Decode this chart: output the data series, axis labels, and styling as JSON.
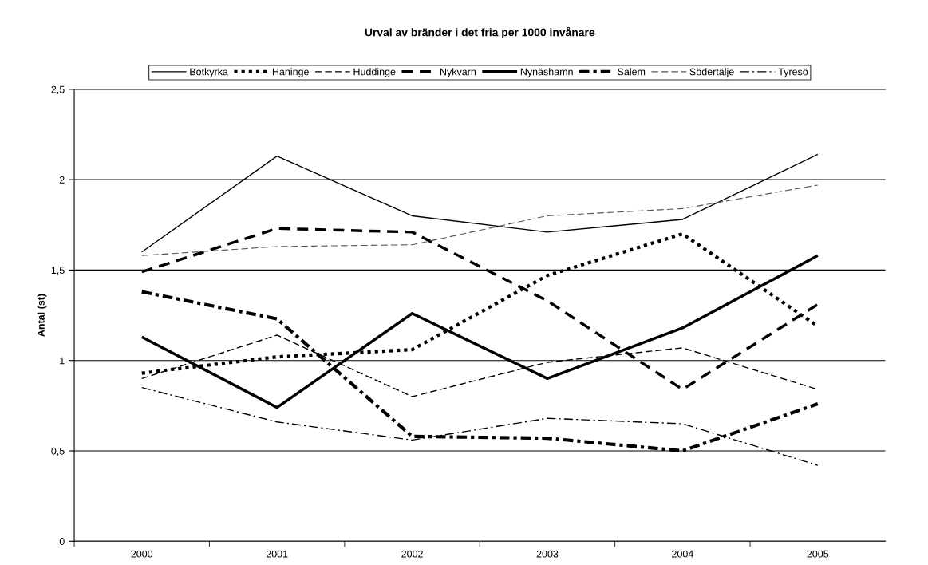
{
  "chart_data": {
    "type": "line",
    "title": "Urval av bränder i det fria per 1000 invånare",
    "ylabel": "Antal (st)",
    "categories": [
      "2000",
      "2001",
      "2002",
      "2003",
      "2004",
      "2005"
    ],
    "ylim": [
      0,
      2.5
    ],
    "yticks": [
      0,
      {
        "value": 0.5,
        "label": "0,5"
      },
      1,
      {
        "value": 1.5,
        "label": "1,5"
      },
      2,
      {
        "value": 2.5,
        "label": "2,5"
      }
    ],
    "grid": "y",
    "legend": "top",
    "marker": "none",
    "series": [
      {
        "name": "Botkyrka",
        "color": "#000000",
        "line_style": "solid",
        "values": [
          1.6,
          2.13,
          1.8,
          1.71,
          1.78,
          2.14
        ]
      },
      {
        "name": "Haninge",
        "color": "#000000",
        "line_style": "dotted",
        "values": [
          0.93,
          1.02,
          1.06,
          1.47,
          1.7,
          1.19
        ]
      },
      {
        "name": "Huddinge",
        "color": "#000000",
        "line_style": "dashed",
        "values": [
          0.9,
          1.14,
          0.8,
          0.99,
          1.07,
          0.84
        ]
      },
      {
        "name": "Nykvarn",
        "color": "#000000",
        "line_style": "longdash",
        "values": [
          1.49,
          1.73,
          1.71,
          1.33,
          0.84,
          1.31
        ]
      },
      {
        "name": "Nynäshamn",
        "color": "#000000",
        "line_style": "solid",
        "values": [
          1.13,
          0.74,
          1.26,
          0.9,
          1.18,
          1.58
        ]
      },
      {
        "name": "Salem",
        "color": "#000000",
        "line_style": "dashdot",
        "values": [
          1.38,
          1.23,
          0.58,
          0.57,
          0.5,
          0.76
        ]
      },
      {
        "name": "Södertälje",
        "color": "#555555",
        "line_style": "dashed",
        "values": [
          1.58,
          1.63,
          1.64,
          1.8,
          1.84,
          1.97
        ]
      },
      {
        "name": "Tyresö",
        "color": "#000000",
        "line_style": "dashdot",
        "values": [
          0.85,
          0.66,
          0.56,
          0.68,
          0.65,
          0.42
        ]
      }
    ]
  }
}
